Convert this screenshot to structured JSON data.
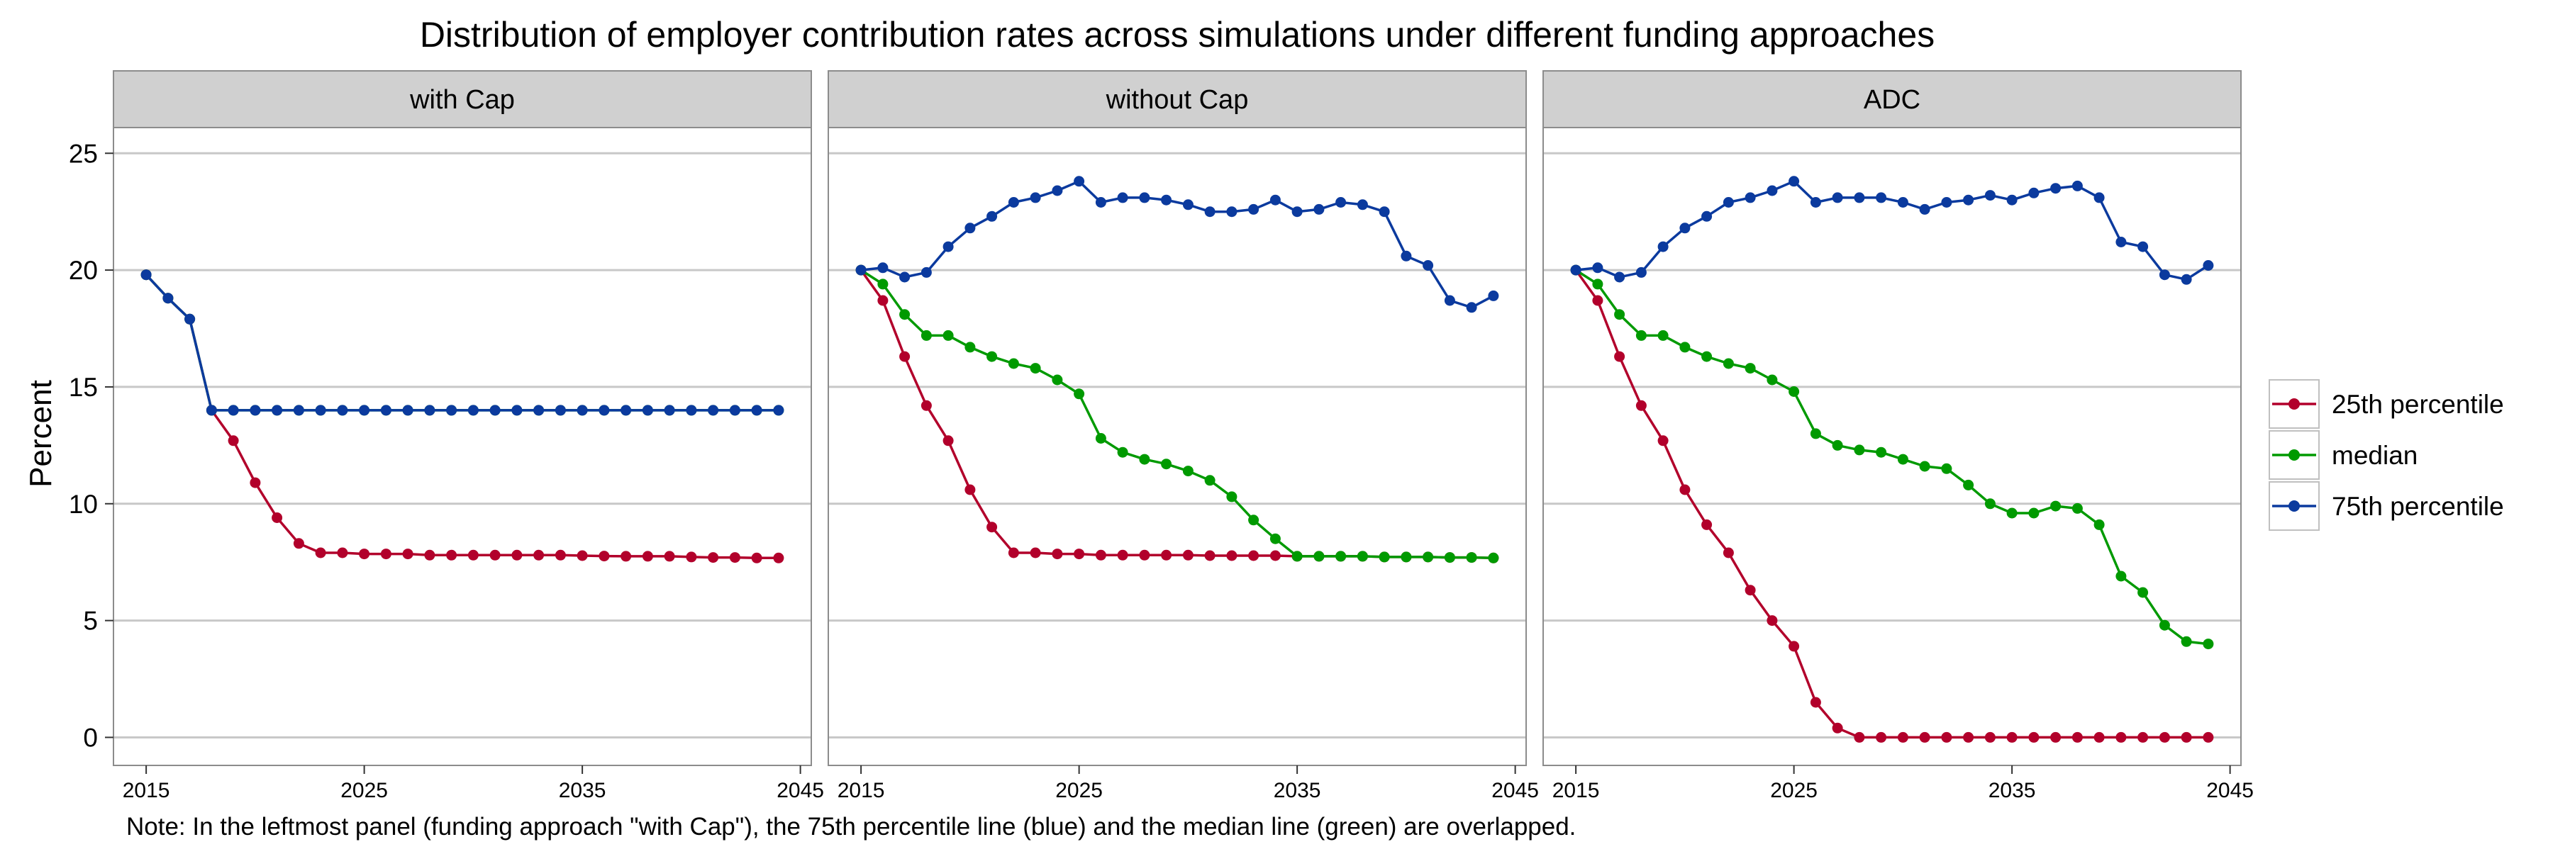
{
  "title": "Distribution of employer contribution rates across simulations under different funding approaches",
  "ylabel": "Percent",
  "note": "Note: In the leftmost panel (funding approach \"with Cap\"), the 75th percentile line (blue) and the median line (green) are overlapped.",
  "colors": {
    "p25": "#b2002b",
    "median": "#009a00",
    "p75": "#0b3a9e",
    "strip": "#d0d0d0",
    "grid": "#c8c8c8",
    "frame": "#8c8c8c"
  },
  "chart_data": [
    {
      "type": "line",
      "panel": "with Cap",
      "x": [
        2015,
        2016,
        2017,
        2018,
        2019,
        2020,
        2021,
        2022,
        2023,
        2024,
        2025,
        2026,
        2027,
        2028,
        2029,
        2030,
        2031,
        2032,
        2033,
        2034,
        2035,
        2036,
        2037,
        2038,
        2039,
        2040,
        2041,
        2042,
        2043,
        2044
      ],
      "xticks": [
        "2015",
        "2025",
        "2035",
        "2045"
      ],
      "yticks": [
        "0",
        "5",
        "10",
        "15",
        "20",
        "25"
      ],
      "ylim": [
        -1.2,
        26.1
      ],
      "xlim": [
        2013.5,
        2045.5
      ],
      "grid": true,
      "legend_position": "right",
      "series": [
        {
          "name": "25th percentile",
          "color": "#b2002b",
          "values": [
            19.8,
            18.8,
            17.9,
            14.0,
            12.7,
            10.9,
            9.4,
            8.3,
            7.9,
            7.9,
            7.85,
            7.85,
            7.85,
            7.8,
            7.8,
            7.8,
            7.8,
            7.8,
            7.8,
            7.8,
            7.78,
            7.76,
            7.75,
            7.75,
            7.75,
            7.72,
            7.7,
            7.7,
            7.68,
            7.68
          ]
        },
        {
          "name": "median",
          "color": "#009a00",
          "values": [
            19.8,
            18.8,
            17.9,
            14.0,
            14.0,
            14.0,
            14.0,
            14.0,
            14.0,
            14.0,
            14.0,
            14.0,
            14.0,
            14.0,
            14.0,
            14.0,
            14.0,
            14.0,
            14.0,
            14.0,
            14.0,
            14.0,
            14.0,
            14.0,
            14.0,
            14.0,
            14.0,
            14.0,
            14.0,
            14.0
          ]
        },
        {
          "name": "75th percentile",
          "color": "#0b3a9e",
          "values": [
            19.8,
            18.8,
            17.9,
            14.0,
            14.0,
            14.0,
            14.0,
            14.0,
            14.0,
            14.0,
            14.0,
            14.0,
            14.0,
            14.0,
            14.0,
            14.0,
            14.0,
            14.0,
            14.0,
            14.0,
            14.0,
            14.0,
            14.0,
            14.0,
            14.0,
            14.0,
            14.0,
            14.0,
            14.0,
            14.0
          ]
        }
      ]
    },
    {
      "type": "line",
      "panel": "without Cap",
      "x": [
        2015,
        2016,
        2017,
        2018,
        2019,
        2020,
        2021,
        2022,
        2023,
        2024,
        2025,
        2026,
        2027,
        2028,
        2029,
        2030,
        2031,
        2032,
        2033,
        2034,
        2035,
        2036,
        2037,
        2038,
        2039,
        2040,
        2041,
        2042,
        2043,
        2044
      ],
      "xticks": [
        "2015",
        "2025",
        "2035",
        "2045"
      ],
      "ylim": [
        -1.2,
        26.1
      ],
      "xlim": [
        2013.5,
        2045.5
      ],
      "grid": true,
      "series": [
        {
          "name": "25th percentile",
          "color": "#b2002b",
          "values": [
            20.0,
            18.7,
            16.3,
            14.2,
            12.7,
            10.6,
            9.0,
            7.9,
            7.9,
            7.85,
            7.85,
            7.8,
            7.8,
            7.8,
            7.8,
            7.8,
            7.78,
            7.78,
            7.78,
            7.78,
            7.75,
            7.75,
            7.75,
            7.75,
            7.72,
            7.72,
            7.72,
            7.7,
            7.7,
            7.68
          ]
        },
        {
          "name": "median",
          "color": "#009a00",
          "values": [
            20.0,
            19.4,
            18.1,
            17.2,
            17.2,
            16.7,
            16.3,
            16.0,
            15.8,
            15.3,
            14.7,
            12.8,
            12.2,
            11.9,
            11.7,
            11.4,
            11.0,
            10.3,
            9.3,
            8.5,
            7.75,
            7.75,
            7.75,
            7.75,
            7.72,
            7.72,
            7.72,
            7.7,
            7.7,
            7.68
          ]
        },
        {
          "name": "75th percentile",
          "color": "#0b3a9e",
          "values": [
            20.0,
            20.1,
            19.7,
            19.9,
            21.0,
            21.8,
            22.3,
            22.9,
            23.1,
            23.4,
            23.8,
            22.9,
            23.1,
            23.1,
            23.0,
            22.8,
            22.5,
            22.5,
            22.6,
            23.0,
            22.5,
            22.6,
            22.9,
            22.8,
            22.5,
            20.6,
            20.2,
            18.7,
            18.4,
            18.9
          ]
        }
      ]
    },
    {
      "type": "line",
      "panel": "ADC",
      "x": [
        2015,
        2016,
        2017,
        2018,
        2019,
        2020,
        2021,
        2022,
        2023,
        2024,
        2025,
        2026,
        2027,
        2028,
        2029,
        2030,
        2031,
        2032,
        2033,
        2034,
        2035,
        2036,
        2037,
        2038,
        2039,
        2040,
        2041,
        2042,
        2043,
        2044
      ],
      "xticks": [
        "2015",
        "2025",
        "2035",
        "2045"
      ],
      "ylim": [
        -1.2,
        26.1
      ],
      "xlim": [
        2013.5,
        2045.5
      ],
      "grid": true,
      "series": [
        {
          "name": "25th percentile",
          "color": "#b2002b",
          "values": [
            20.0,
            18.7,
            16.3,
            14.2,
            12.7,
            10.6,
            9.1,
            7.9,
            6.3,
            5.0,
            3.9,
            1.5,
            0.4,
            0.0,
            0.0,
            0.0,
            0.0,
            0.0,
            0.0,
            0.0,
            0.0,
            0.0,
            0.0,
            0.0,
            0.0,
            0.0,
            0.0,
            0.0,
            0.0,
            0.0
          ]
        },
        {
          "name": "median",
          "color": "#009a00",
          "values": [
            20.0,
            19.4,
            18.1,
            17.2,
            17.2,
            16.7,
            16.3,
            16.0,
            15.8,
            15.3,
            14.8,
            13.0,
            12.5,
            12.3,
            12.2,
            11.9,
            11.6,
            11.5,
            10.8,
            10.0,
            9.6,
            9.6,
            9.9,
            9.8,
            9.1,
            6.9,
            6.2,
            4.8,
            4.1,
            4.0
          ]
        },
        {
          "name": "75th percentile",
          "color": "#0b3a9e",
          "values": [
            20.0,
            20.1,
            19.7,
            19.9,
            21.0,
            21.8,
            22.3,
            22.9,
            23.1,
            23.4,
            23.8,
            22.9,
            23.1,
            23.1,
            23.1,
            22.9,
            22.6,
            22.9,
            23.0,
            23.2,
            23.0,
            23.3,
            23.5,
            23.6,
            23.1,
            21.2,
            21.0,
            19.8,
            19.6,
            20.2
          ]
        }
      ]
    }
  ]
}
